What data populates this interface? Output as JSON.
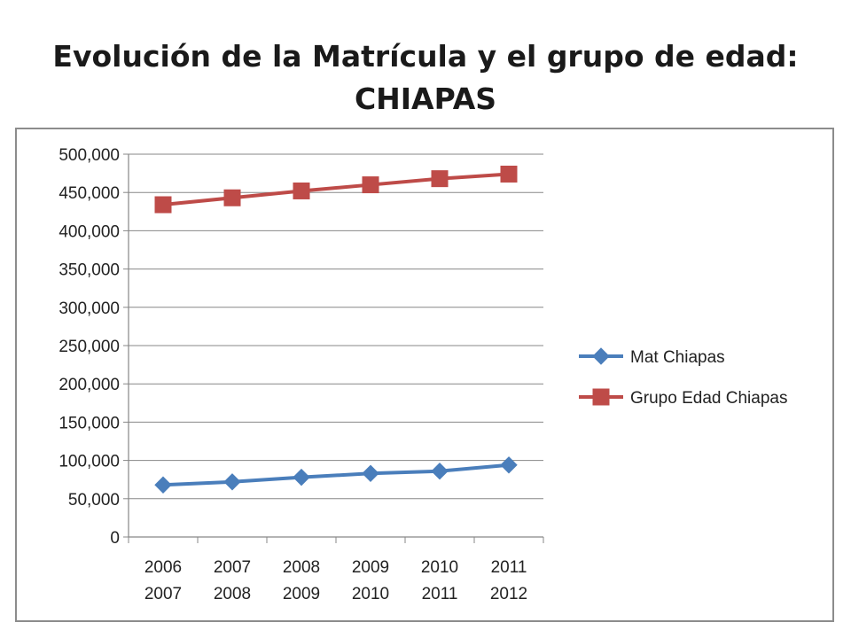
{
  "chart_data": {
    "type": "line",
    "title_line1": "Evolución de la Matrícula y el grupo de edad:",
    "title_line2": "CHIAPAS",
    "categories": [
      [
        "2006",
        "2007"
      ],
      [
        "2007",
        "2008"
      ],
      [
        "2008",
        "2009"
      ],
      [
        "2009",
        "2010"
      ],
      [
        "2010",
        "2011"
      ],
      [
        "2011",
        "2012"
      ]
    ],
    "y_ticks": [
      "0",
      "50,000",
      "100,000",
      "150,000",
      "200,000",
      "250,000",
      "300,000",
      "350,000",
      "400,000",
      "450,000",
      "500,000"
    ],
    "ylim": [
      0,
      500000
    ],
    "y_step": 50000,
    "grid": "horizontal",
    "legend_position": "right",
    "series": [
      {
        "name": "Mat Chiapas",
        "color": "#4a7ebb",
        "marker": "diamond",
        "values": [
          68000,
          72000,
          78000,
          83000,
          86000,
          94000
        ]
      },
      {
        "name": "Grupo Edad Chiapas",
        "color": "#be4b48",
        "marker": "square",
        "values": [
          434000,
          443000,
          452000,
          460000,
          468000,
          474000
        ]
      }
    ]
  }
}
